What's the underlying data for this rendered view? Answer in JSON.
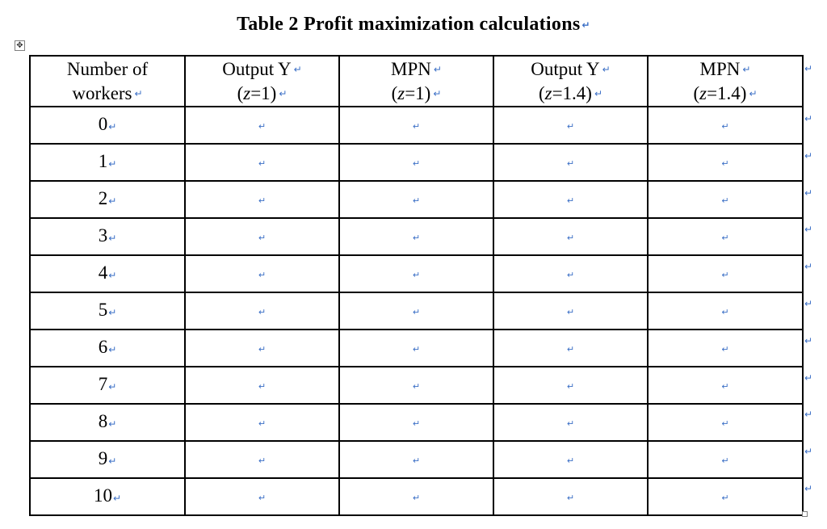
{
  "document": {
    "title": "Table 2 Profit maximization calculations",
    "paragraph_mark": "↵",
    "table_move_handle_icon": "move-arrows-icon",
    "mark_color": "#3b6fc6"
  },
  "table": {
    "headers": [
      {
        "line1": "Number of",
        "line2": "workers"
      },
      {
        "line1": "Output Y",
        "line2": "(z=1)"
      },
      {
        "line1": "MPN",
        "line2": "(z=1)"
      },
      {
        "line1": "Output Y",
        "line2": "(z=1.4)"
      },
      {
        "line1": "MPN",
        "line2": "(z=1.4)"
      }
    ],
    "rows": [
      {
        "workers": "0"
      },
      {
        "workers": "1"
      },
      {
        "workers": "2"
      },
      {
        "workers": "3"
      },
      {
        "workers": "4"
      },
      {
        "workers": "5"
      },
      {
        "workers": "6"
      },
      {
        "workers": "7"
      },
      {
        "workers": "8"
      },
      {
        "workers": "9"
      },
      {
        "workers": "10"
      }
    ]
  }
}
